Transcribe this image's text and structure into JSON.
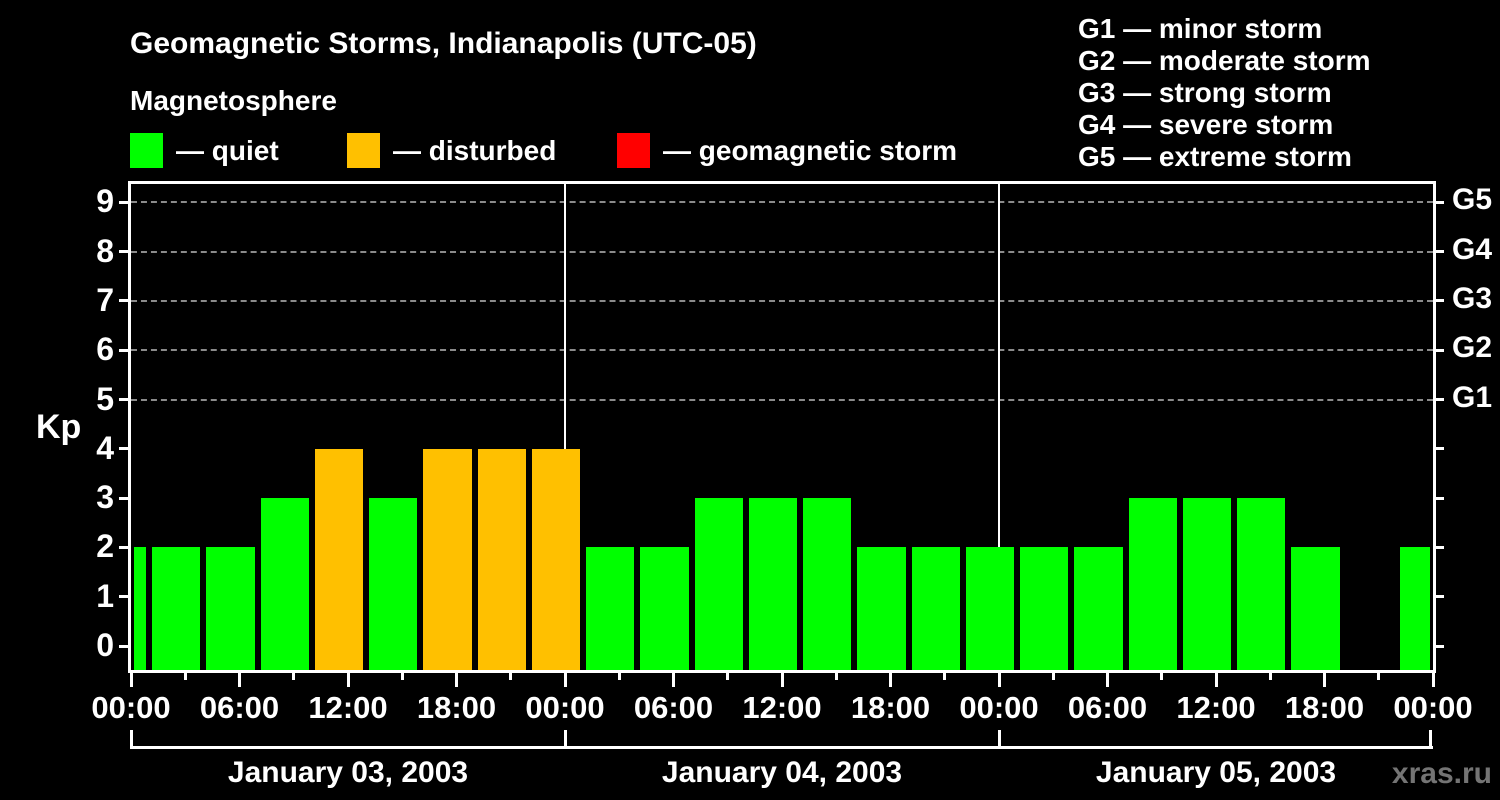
{
  "header": {
    "title": "Geomagnetic Storms, Indianapolis (UTC-05)",
    "subtitle": "Magnetosphere"
  },
  "watermark": "xras.ru",
  "chart_data": {
    "type": "bar",
    "title": "Geomagnetic Storms, Indianapolis (UTC-05)",
    "subtitle": "Magnetosphere",
    "ylabel": "Kp",
    "ylim": [
      0,
      9.5
    ],
    "grid": "dashed horizontal lines at Kp 5-9 only",
    "legend_position": "top-left row",
    "separator": "—",
    "state_legend": [
      {
        "state": "quiet",
        "label": "quiet",
        "color": "#00ff00"
      },
      {
        "state": "disturbed",
        "label": "disturbed",
        "color": "#ffc000"
      },
      {
        "state": "storm",
        "label": "geomagnetic storm",
        "color": "#ff0000"
      }
    ],
    "g_scale_legend": [
      {
        "code": "G1",
        "label": "minor storm"
      },
      {
        "code": "G2",
        "label": "moderate storm"
      },
      {
        "code": "G3",
        "label": "strong storm"
      },
      {
        "code": "G4",
        "label": "severe storm"
      },
      {
        "code": "G5",
        "label": "extreme storm"
      }
    ],
    "y_ticks": [
      0,
      1,
      2,
      3,
      4,
      5,
      6,
      7,
      8,
      9
    ],
    "right_axis_labels": [
      {
        "kp": 5,
        "label": "G1"
      },
      {
        "kp": 6,
        "label": "G2"
      },
      {
        "kp": 7,
        "label": "G3"
      },
      {
        "kp": 8,
        "label": "G4"
      },
      {
        "kp": 9,
        "label": "G5"
      }
    ],
    "gridline_levels": [
      5,
      6,
      7,
      8,
      9
    ],
    "x_major_ticks": [
      {
        "hour": 0,
        "label": "00:00"
      },
      {
        "hour": 6,
        "label": "06:00"
      },
      {
        "hour": 12,
        "label": "12:00"
      },
      {
        "hour": 18,
        "label": "18:00"
      },
      {
        "hour": 24,
        "label": "00:00"
      },
      {
        "hour": 30,
        "label": "06:00"
      },
      {
        "hour": 36,
        "label": "12:00"
      },
      {
        "hour": 42,
        "label": "18:00"
      },
      {
        "hour": 48,
        "label": "00:00"
      },
      {
        "hour": 54,
        "label": "06:00"
      },
      {
        "hour": 60,
        "label": "12:00"
      },
      {
        "hour": 66,
        "label": "18:00"
      },
      {
        "hour": 72,
        "label": "00:00"
      }
    ],
    "x_minor_tick_hours": [
      3,
      9,
      15,
      21,
      27,
      33,
      39,
      45,
      51,
      57,
      63,
      69
    ],
    "days": [
      {
        "label": "January 03, 2003",
        "start_hour": 0,
        "end_hour": 24
      },
      {
        "label": "January 04, 2003",
        "start_hour": 24,
        "end_hour": 48
      },
      {
        "label": "January 05, 2003",
        "start_hour": 48,
        "end_hour": 72
      }
    ],
    "day_boundary_hours": [
      24,
      48
    ],
    "bars": [
      {
        "start_hour": 0,
        "end_hour": 1,
        "kp": 2,
        "state": "quiet"
      },
      {
        "start_hour": 1,
        "end_hour": 4,
        "kp": 2,
        "state": "quiet"
      },
      {
        "start_hour": 4,
        "end_hour": 7,
        "kp": 2,
        "state": "quiet"
      },
      {
        "start_hour": 7,
        "end_hour": 10,
        "kp": 3,
        "state": "quiet"
      },
      {
        "start_hour": 10,
        "end_hour": 13,
        "kp": 4,
        "state": "disturbed"
      },
      {
        "start_hour": 13,
        "end_hour": 16,
        "kp": 3,
        "state": "quiet"
      },
      {
        "start_hour": 16,
        "end_hour": 19,
        "kp": 4,
        "state": "disturbed"
      },
      {
        "start_hour": 19,
        "end_hour": 22,
        "kp": 4,
        "state": "disturbed"
      },
      {
        "start_hour": 22,
        "end_hour": 25,
        "kp": 4,
        "state": "disturbed"
      },
      {
        "start_hour": 25,
        "end_hour": 28,
        "kp": 2,
        "state": "quiet"
      },
      {
        "start_hour": 28,
        "end_hour": 31,
        "kp": 2,
        "state": "quiet"
      },
      {
        "start_hour": 31,
        "end_hour": 34,
        "kp": 3,
        "state": "quiet"
      },
      {
        "start_hour": 34,
        "end_hour": 37,
        "kp": 3,
        "state": "quiet"
      },
      {
        "start_hour": 37,
        "end_hour": 40,
        "kp": 3,
        "state": "quiet"
      },
      {
        "start_hour": 40,
        "end_hour": 43,
        "kp": 2,
        "state": "quiet"
      },
      {
        "start_hour": 43,
        "end_hour": 46,
        "kp": 2,
        "state": "quiet"
      },
      {
        "start_hour": 46,
        "end_hour": 49,
        "kp": 2,
        "state": "quiet"
      },
      {
        "start_hour": 49,
        "end_hour": 52,
        "kp": 2,
        "state": "quiet"
      },
      {
        "start_hour": 52,
        "end_hour": 55,
        "kp": 2,
        "state": "quiet"
      },
      {
        "start_hour": 55,
        "end_hour": 58,
        "kp": 3,
        "state": "quiet"
      },
      {
        "start_hour": 58,
        "end_hour": 61,
        "kp": 3,
        "state": "quiet"
      },
      {
        "start_hour": 61,
        "end_hour": 64,
        "kp": 3,
        "state": "quiet"
      },
      {
        "start_hour": 64,
        "end_hour": 67,
        "kp": 2,
        "state": "quiet"
      },
      {
        "start_hour": 70,
        "end_hour": 72,
        "kp": 2,
        "state": "quiet"
      }
    ],
    "colors": {
      "background": "#000000",
      "axis": "#ffffff",
      "gridline": "#8b8b8b",
      "quiet": "#00ff00",
      "disturbed": "#ffc000",
      "storm": "#ff0000",
      "watermark": "#747474"
    }
  }
}
